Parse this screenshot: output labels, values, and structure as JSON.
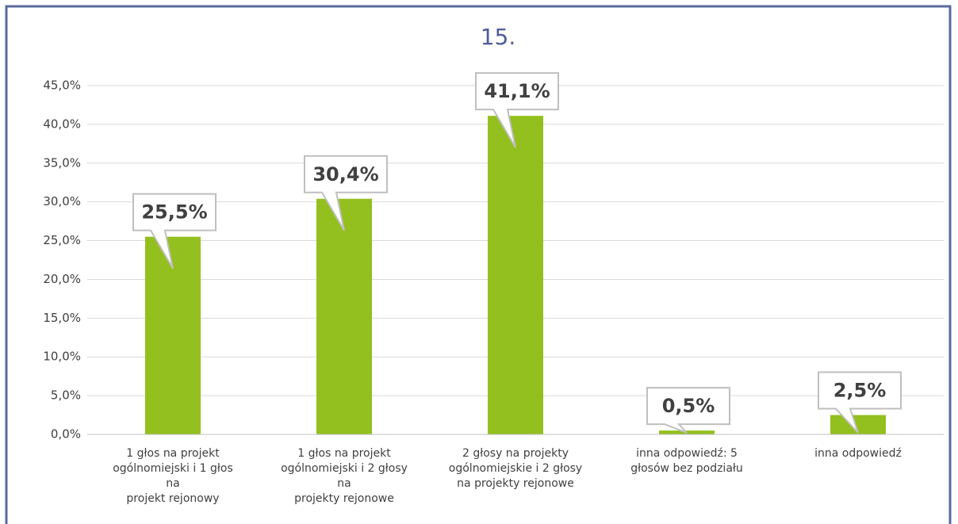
{
  "chart_data": {
    "type": "bar",
    "title": "15.",
    "categories": [
      [
        "1 głos na projekt",
        "ogólnomiejski i 1 głos",
        "na",
        "projekt rejonowy"
      ],
      [
        "1 głos na projekt",
        "ogólnomiejski i 2 głosy",
        "na",
        "projekty rejonowe"
      ],
      [
        "2 głosy na projekty",
        "ogólnomiejskie i 2 głosy",
        "na projekty rejonowe"
      ],
      [
        "inna odpowiedź: 5",
        "głosów bez podziału"
      ],
      [
        "inna odpowiedź"
      ]
    ],
    "values": [
      25.5,
      30.4,
      41.1,
      0.5,
      2.5
    ],
    "value_labels": [
      "25,5%",
      "30,4%",
      "41,1%",
      "0,5%",
      "2,5%"
    ],
    "color": "#93c01f",
    "ylim": [
      0,
      45
    ],
    "yticks": [
      {
        "value": 0,
        "label": "0,0%"
      },
      {
        "value": 5,
        "label": "5,0%"
      },
      {
        "value": 10,
        "label": "10,0%"
      },
      {
        "value": 15,
        "label": "15,0%"
      },
      {
        "value": 20,
        "label": "20,0%"
      },
      {
        "value": 25,
        "label": "25,0%"
      },
      {
        "value": 30,
        "label": "30,0%"
      },
      {
        "value": 35,
        "label": "35,0%"
      },
      {
        "value": 40,
        "label": "40,0%"
      },
      {
        "value": 45,
        "label": "45,0%"
      }
    ],
    "grid": true
  }
}
